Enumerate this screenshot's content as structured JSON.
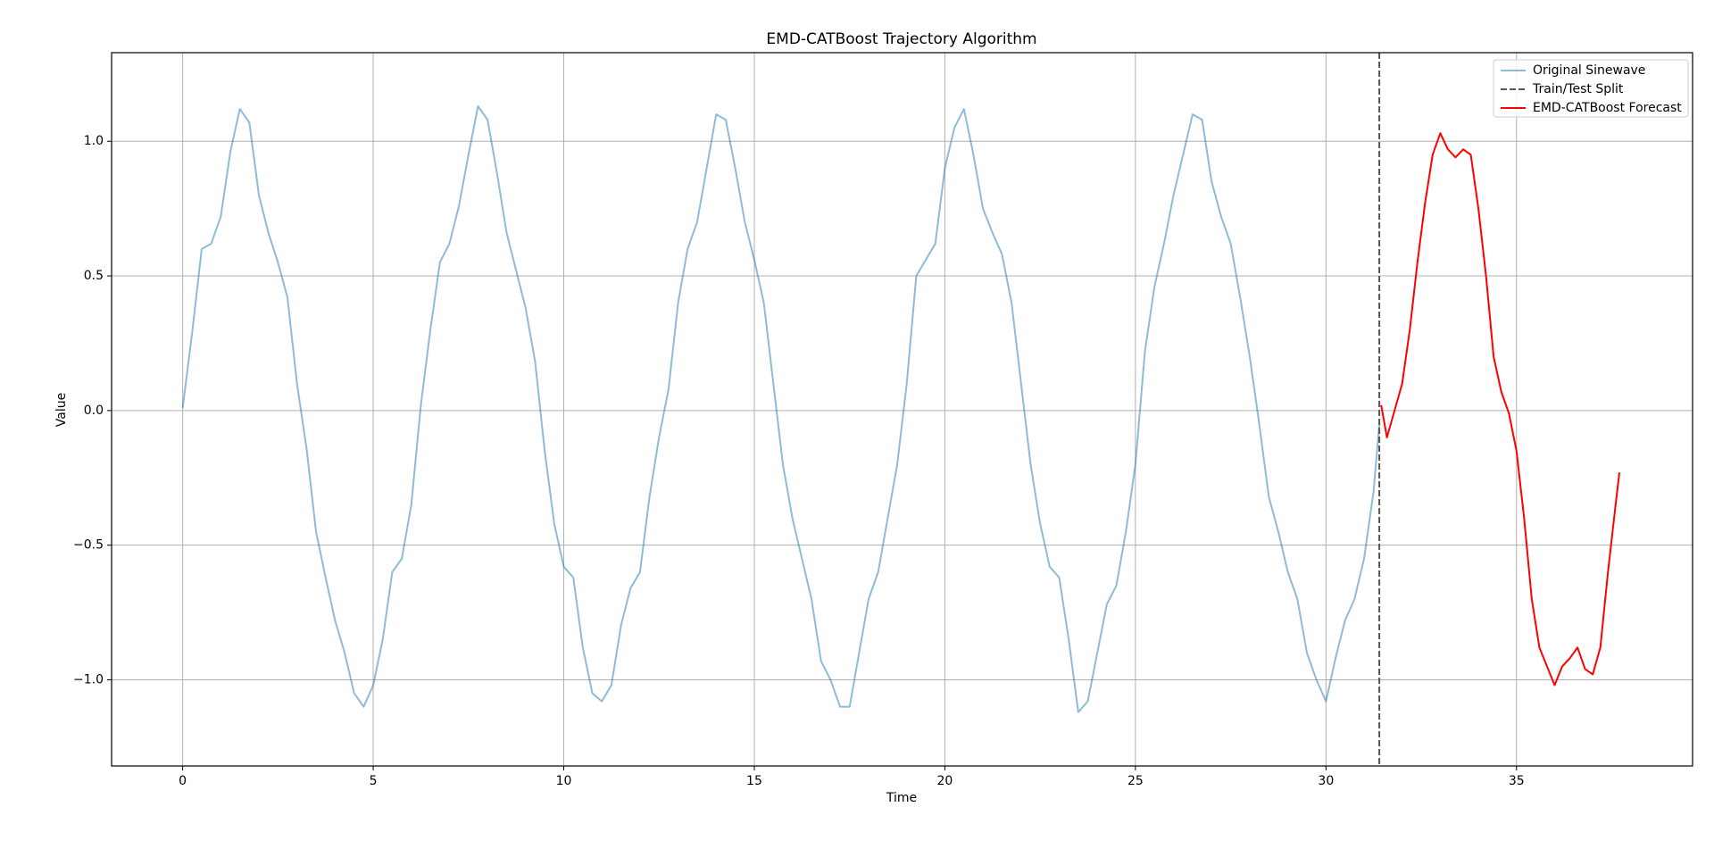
{
  "chart_data": {
    "type": "line",
    "title": "EMD-CATBoost Trajectory Algorithm",
    "x_label": "Time",
    "y_label": "Value",
    "xlim": [
      -1.865,
      39.62
    ],
    "ylim": [
      -1.32,
      1.329
    ],
    "xticks": [
      0,
      5,
      10,
      15,
      20,
      25,
      30,
      35
    ],
    "yticks": [
      {
        "value": -1,
        "label": "−1.0"
      },
      {
        "value": -0.5,
        "label": "−0.5"
      },
      {
        "value": 0,
        "label": "0.0"
      },
      {
        "value": 0.5,
        "label": "0.5"
      },
      {
        "value": 1,
        "label": "1.0"
      }
    ],
    "grid": true,
    "legend": "upper right",
    "series": [
      {
        "name": "Original Sinewave",
        "color": "#1f77b4",
        "alpha": 0.5,
        "x": [
          0,
          0.25,
          0.5,
          0.75,
          1,
          1.25,
          1.5,
          1.75,
          2,
          2.25,
          2.5,
          2.75,
          3,
          3.25,
          3.5,
          3.75,
          4,
          4.25,
          4.5,
          4.75,
          5,
          5.25,
          5.5,
          5.75,
          6,
          6.25,
          6.5,
          6.75,
          7,
          7.25,
          7.5,
          7.75,
          8,
          8.25,
          8.5,
          8.75,
          9,
          9.25,
          9.5,
          9.75,
          10,
          10.25,
          10.5,
          10.75,
          11,
          11.25,
          11.5,
          11.75,
          12,
          12.25,
          12.5,
          12.75,
          13,
          13.25,
          13.5,
          13.75,
          14,
          14.25,
          14.5,
          14.75,
          15,
          15.25,
          15.5,
          15.75,
          16,
          16.25,
          16.5,
          16.75,
          17,
          17.25,
          17.5,
          17.75,
          18,
          18.25,
          18.5,
          18.75,
          19,
          19.25,
          19.5,
          19.75,
          20,
          20.25,
          20.5,
          20.75,
          21,
          21.25,
          21.5,
          21.75,
          22,
          22.25,
          22.5,
          22.75,
          23,
          23.25,
          23.5,
          23.75,
          24,
          24.25,
          24.5,
          24.75,
          25,
          25.25,
          25.5,
          25.75,
          26,
          26.25,
          26.5,
          26.75,
          27,
          27.25,
          27.5,
          27.75,
          28,
          28.25,
          28.5,
          28.75,
          29,
          29.25,
          29.5,
          29.75,
          30,
          30.25,
          30.5,
          30.75,
          31,
          31.25,
          31.4
        ],
        "values": [
          0.01,
          0.29,
          0.6,
          0.62,
          0.72,
          0.96,
          1.12,
          1.07,
          0.8,
          0.66,
          0.55,
          0.42,
          0.1,
          -0.14,
          -0.45,
          -0.62,
          -0.78,
          -0.9,
          -1.05,
          -1.1,
          -1.02,
          -0.85,
          -0.6,
          -0.55,
          -0.35,
          0.02,
          0.3,
          0.55,
          0.62,
          0.76,
          0.95,
          1.13,
          1.08,
          0.88,
          0.66,
          0.52,
          0.38,
          0.18,
          -0.15,
          -0.42,
          -0.58,
          -0.62,
          -0.88,
          -1.05,
          -1.08,
          -1.02,
          -0.8,
          -0.66,
          -0.6,
          -0.32,
          -0.1,
          0.08,
          0.4,
          0.6,
          0.7,
          0.9,
          1.1,
          1.08,
          0.9,
          0.7,
          0.56,
          0.4,
          0.1,
          -0.2,
          -0.4,
          -0.55,
          -0.7,
          -0.93,
          -1.0,
          -1.1,
          -1.1,
          -0.9,
          -0.7,
          -0.6,
          -0.4,
          -0.2,
          0.1,
          0.5,
          0.56,
          0.62,
          0.9,
          1.05,
          1.12,
          0.95,
          0.75,
          0.66,
          0.58,
          0.4,
          0.1,
          -0.2,
          -0.42,
          -0.58,
          -0.62,
          -0.85,
          -1.12,
          -1.08,
          -0.9,
          -0.72,
          -0.65,
          -0.45,
          -0.2,
          0.22,
          0.46,
          0.62,
          0.8,
          0.95,
          1.1,
          1.08,
          0.85,
          0.72,
          0.62,
          0.42,
          0.2,
          -0.05,
          -0.32,
          -0.45,
          -0.6,
          -0.7,
          -0.9,
          -1.0,
          -1.08,
          -0.92,
          -0.78,
          -0.7,
          -0.55,
          -0.3,
          -0.05
        ]
      },
      {
        "name": "Train/Test Split",
        "color": "#555555",
        "dashed": true,
        "vline": 31.4
      },
      {
        "name": "EMD-CATBoost Forecast",
        "color": "#ff0000",
        "alpha": 1,
        "x": [
          31.45,
          31.6,
          31.8,
          32,
          32.2,
          32.4,
          32.6,
          32.8,
          33,
          33.2,
          33.4,
          33.6,
          33.8,
          34,
          34.2,
          34.4,
          34.6,
          34.8,
          35,
          35.2,
          35.4,
          35.6,
          35.8,
          36,
          36.2,
          36.4,
          36.6,
          36.8,
          37,
          37.2,
          37.4,
          37.6,
          37.7
        ],
        "values": [
          0.02,
          -0.1,
          0.0,
          0.1,
          0.3,
          0.55,
          0.77,
          0.95,
          1.03,
          0.97,
          0.94,
          0.97,
          0.95,
          0.75,
          0.5,
          0.2,
          0.07,
          -0.01,
          -0.15,
          -0.4,
          -0.7,
          -0.88,
          -0.95,
          -1.02,
          -0.95,
          -0.92,
          -0.88,
          -0.96,
          -0.98,
          -0.88,
          -0.6,
          -0.35,
          -0.23
        ]
      }
    ]
  }
}
